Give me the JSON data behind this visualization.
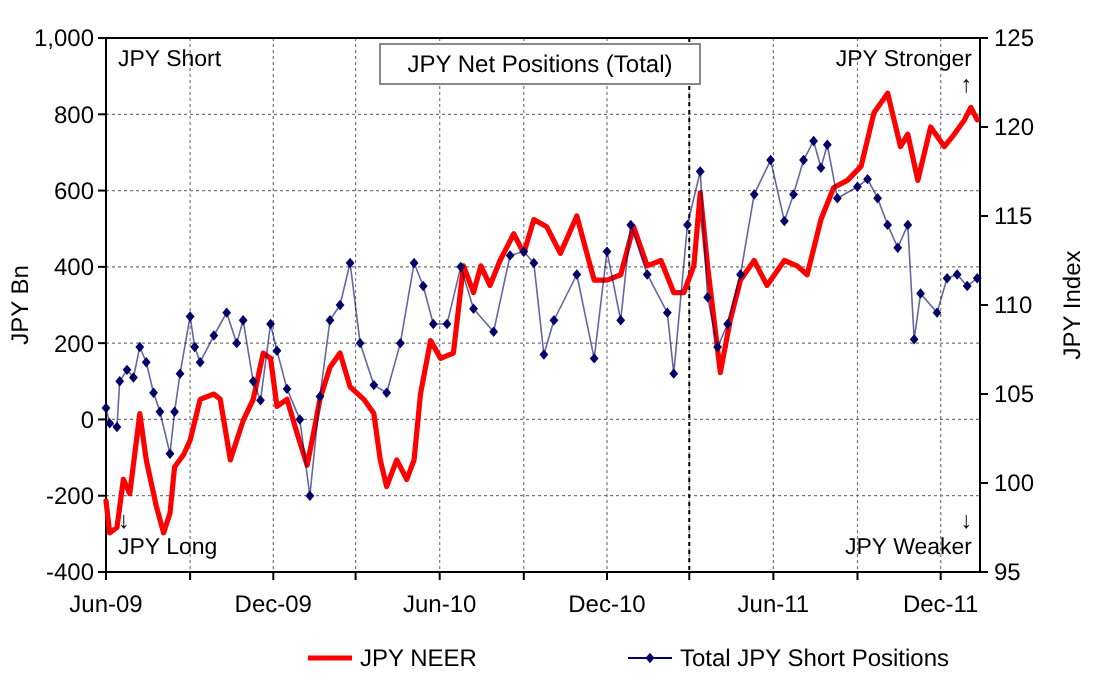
{
  "chart_data": {
    "type": "line",
    "title": "JPY Net Positions (Total)",
    "ylabel": "JPY Bn",
    "y2label": "JPY Index",
    "annotations": [
      "JPY Short",
      "↓\nJPY Long",
      "JPY Stronger\n↑",
      "↓\nJPY Weaker"
    ],
    "xlim": [
      "2009-06-01",
      "2012-01-13"
    ],
    "xticks": [
      {
        "value": "2009-06-01",
        "label": "Jun-09"
      },
      {
        "value": "2009-09-01",
        "label": null
      },
      {
        "value": "2009-12-01",
        "label": "Dec-09"
      },
      {
        "value": "2010-03-01",
        "label": null
      },
      {
        "value": "2010-06-01",
        "label": "Jun-10"
      },
      {
        "value": "2010-09-01",
        "label": null
      },
      {
        "value": "2010-12-01",
        "label": "Dec-10"
      },
      {
        "value": "2011-03-01",
        "label": null
      },
      {
        "value": "2011-06-01",
        "label": "Jun-11"
      },
      {
        "value": "2011-09-01",
        "label": null
      },
      {
        "value": "2011-12-01",
        "label": "Dec-11"
      }
    ],
    "ylim": [
      -400,
      1000
    ],
    "yticks": [
      -400,
      -200,
      0,
      200,
      400,
      600,
      800,
      {
        "value": 1000,
        "label": "1,000"
      }
    ],
    "y2lim": [
      95,
      125
    ],
    "y2ticks": [
      95,
      100,
      105,
      110,
      115,
      120,
      125
    ],
    "grid": true,
    "legend": "bottom",
    "ref_lines": [
      {
        "axis": "x",
        "value": "2011-03-01",
        "color": "#000000",
        "line_style": "dotted"
      }
    ],
    "series": [
      {
        "name": "JPY NEER",
        "axis": "y2",
        "color": "#ff0000",
        "marker": "none",
        "line_style": "solid",
        "x": [
          "2009-06-01",
          "2009-06-05",
          "2009-06-13",
          "2009-06-20",
          "2009-06-27",
          "2009-07-08",
          "2009-07-15",
          "2009-07-26",
          "2009-08-03",
          "2009-08-10",
          "2009-08-15",
          "2009-08-25",
          "2009-09-01",
          "2009-09-12",
          "2009-09-27",
          "2009-10-04",
          "2009-10-15",
          "2009-10-29",
          "2009-11-09",
          "2009-11-20",
          "2009-11-28",
          "2009-12-05",
          "2009-12-16",
          "2009-12-27",
          "2010-01-07",
          "2010-01-14",
          "2010-01-21",
          "2010-02-01",
          "2010-02-12",
          "2010-02-23",
          "2010-03-10",
          "2010-03-21",
          "2010-03-28",
          "2010-04-04",
          "2010-04-15",
          "2010-04-26",
          "2010-05-04",
          "2010-05-11",
          "2010-05-22",
          "2010-06-02",
          "2010-06-16",
          "2010-06-27",
          "2010-07-08",
          "2010-07-16",
          "2010-07-26",
          "2010-08-06",
          "2010-08-21",
          "2010-09-01",
          "2010-09-12",
          "2010-09-26",
          "2010-10-11",
          "2010-10-29",
          "2010-11-09",
          "2010-11-17",
          "2010-12-01",
          "2010-12-16",
          "2010-12-30",
          "2011-01-14",
          "2011-01-29",
          "2011-02-12",
          "2011-02-23",
          "2011-03-06",
          "2011-03-13",
          "2011-03-21",
          "2011-04-04",
          "2011-04-15",
          "2011-04-26",
          "2011-05-11",
          "2011-05-25",
          "2011-06-13",
          "2011-06-27",
          "2011-07-08",
          "2011-07-23",
          "2011-08-06",
          "2011-08-21",
          "2011-09-05",
          "2011-09-19",
          "2011-10-04",
          "2011-10-18",
          "2011-10-26",
          "2011-11-06",
          "2011-11-20",
          "2011-12-05",
          "2011-12-16",
          "2011-12-27",
          "2012-01-03",
          "2012-01-10"
        ],
        "values": [
          99.0,
          97.2,
          97.5,
          100.2,
          99.4,
          103.9,
          101.3,
          98.7,
          97.2,
          98.3,
          100.9,
          101.6,
          102.4,
          104.7,
          105.0,
          104.7,
          101.3,
          103.5,
          104.7,
          107.3,
          107.0,
          104.3,
          104.7,
          102.8,
          101.0,
          102.8,
          104.7,
          106.5,
          107.3,
          105.4,
          104.7,
          103.9,
          101.3,
          99.8,
          101.3,
          100.2,
          101.3,
          105.0,
          108.0,
          107.0,
          107.3,
          112.2,
          110.7,
          112.2,
          111.1,
          112.5,
          114.0,
          112.9,
          114.8,
          114.4,
          112.9,
          115.0,
          112.9,
          111.4,
          111.4,
          111.7,
          114.4,
          112.2,
          112.5,
          110.7,
          110.7,
          112.2,
          116.3,
          112.2,
          106.2,
          109.2,
          111.4,
          112.5,
          111.1,
          112.5,
          112.2,
          111.7,
          114.8,
          116.6,
          117.0,
          117.8,
          120.8,
          121.9,
          118.9,
          119.6,
          117.0,
          120.0,
          118.9,
          119.6,
          120.4,
          121.1,
          120.4
        ]
      },
      {
        "name": "Total JPY Short Positions",
        "color": "#000066",
        "marker": "diamond",
        "line_style": "solid",
        "x": [
          "2009-06-01",
          "2009-06-05",
          "2009-06-13",
          "2009-06-16",
          "2009-06-24",
          "2009-07-01",
          "2009-07-08",
          "2009-07-15",
          "2009-07-23",
          "2009-07-30",
          "2009-08-10",
          "2009-08-15",
          "2009-08-21",
          "2009-09-01",
          "2009-09-06",
          "2009-09-12",
          "2009-09-27",
          "2009-10-11",
          "2009-10-22",
          "2009-10-29",
          "2009-11-09",
          "2009-11-17",
          "2009-11-28",
          "2009-12-05",
          "2009-12-16",
          "2009-12-30",
          "2010-01-10",
          "2010-01-21",
          "2010-02-01",
          "2010-02-12",
          "2010-02-23",
          "2010-03-06",
          "2010-03-21",
          "2010-04-04",
          "2010-04-19",
          "2010-05-04",
          "2010-05-14",
          "2010-05-25",
          "2010-06-09",
          "2010-06-24",
          "2010-07-08",
          "2010-07-30",
          "2010-08-17",
          "2010-09-01",
          "2010-09-12",
          "2010-09-23",
          "2010-10-04",
          "2010-10-29",
          "2010-11-17",
          "2010-12-01",
          "2010-12-16",
          "2010-12-27",
          "2011-01-14",
          "2011-02-05",
          "2011-02-12",
          "2011-02-27",
          "2011-03-13",
          "2011-03-21",
          "2011-04-01",
          "2011-04-12",
          "2011-04-26",
          "2011-05-11",
          "2011-05-29",
          "2011-06-13",
          "2011-06-23",
          "2011-07-04",
          "2011-07-15",
          "2011-07-23",
          "2011-07-30",
          "2011-08-10",
          "2011-09-01",
          "2011-09-12",
          "2011-09-23",
          "2011-10-04",
          "2011-10-15",
          "2011-10-26",
          "2011-11-02",
          "2011-11-09",
          "2011-11-27",
          "2011-12-08",
          "2011-12-19",
          "2011-12-30",
          "2012-01-10"
        ],
        "values": [
          30,
          -10,
          -20,
          100,
          130,
          110,
          190,
          150,
          70,
          20,
          -90,
          20,
          120,
          270,
          190,
          150,
          220,
          280,
          200,
          260,
          100,
          50,
          250,
          180,
          80,
          0,
          -200,
          60,
          260,
          300,
          410,
          200,
          90,
          70,
          200,
          410,
          350,
          250,
          250,
          400,
          290,
          230,
          430,
          440,
          410,
          170,
          260,
          380,
          160,
          440,
          260,
          510,
          380,
          280,
          120,
          510,
          650,
          320,
          190,
          250,
          380,
          590,
          680,
          520,
          590,
          680,
          730,
          660,
          720,
          580,
          610,
          630,
          580,
          510,
          450,
          510,
          210,
          330,
          280,
          370,
          380,
          350,
          370
        ]
      }
    ]
  }
}
